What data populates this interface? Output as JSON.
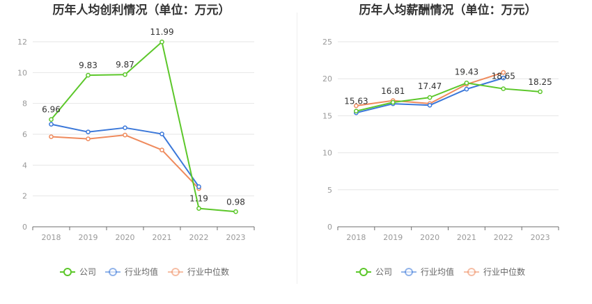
{
  "chart_data": [
    {
      "type": "line",
      "title": "历年人均创利情况（单位：万元）",
      "categories": [
        "2018",
        "2019",
        "2020",
        "2021",
        "2022",
        "2023"
      ],
      "ylim": [
        0,
        12
      ],
      "yticks": [
        0,
        2,
        4,
        6,
        8,
        10,
        12
      ],
      "grid": true,
      "legend_position": "bottom",
      "series": [
        {
          "name": "公司",
          "color": "#5cc72a",
          "values": [
            6.96,
            9.83,
            9.87,
            11.99,
            1.19,
            0.98
          ],
          "labels": [
            "6.96",
            "9.83",
            "9.87",
            "11.99",
            "1.19",
            "0.98"
          ]
        },
        {
          "name": "行业均值",
          "color": "#3a77d9",
          "values": [
            6.65,
            6.15,
            6.42,
            6.02,
            2.6,
            null
          ]
        },
        {
          "name": "行业中位数",
          "color": "#ef8a5c",
          "values": [
            5.84,
            5.7,
            5.95,
            4.98,
            2.48,
            null
          ]
        }
      ]
    },
    {
      "type": "line",
      "title": "历年人均薪酬情况（单位：万元）",
      "categories": [
        "2018",
        "2019",
        "2020",
        "2021",
        "2022",
        "2023"
      ],
      "ylim": [
        0,
        25
      ],
      "yticks": [
        0,
        5,
        10,
        15,
        20,
        25
      ],
      "grid": true,
      "legend_position": "bottom",
      "series": [
        {
          "name": "公司",
          "color": "#5cc72a",
          "values": [
            15.63,
            16.81,
            17.47,
            19.43,
            18.65,
            18.25
          ],
          "labels": [
            "15.63",
            "16.81",
            "17.47",
            "19.43",
            "18.65",
            "18.25"
          ]
        },
        {
          "name": "行业均值",
          "color": "#3a77d9",
          "values": [
            15.4,
            16.62,
            16.42,
            18.6,
            20.1,
            null
          ]
        },
        {
          "name": "行业中位数",
          "color": "#ef8a5c",
          "values": [
            16.35,
            17.05,
            16.65,
            19.25,
            20.85,
            null
          ]
        }
      ]
    }
  ]
}
